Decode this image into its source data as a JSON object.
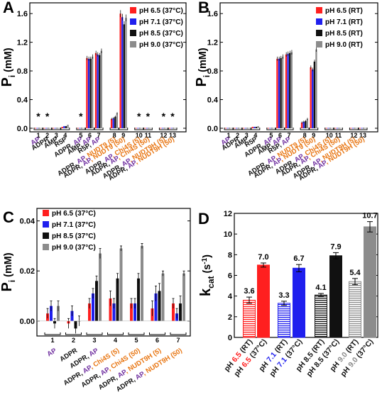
{
  "colors": {
    "red": "#ff1f1f",
    "blue": "#1f1fee",
    "black": "#111111",
    "gray": "#8c8c8c",
    "purple": "#7030a0",
    "orange": "#e87511"
  },
  "chart_data": [
    {
      "panel": "A",
      "type": "bar",
      "ylabel_main": "P",
      "ylabel_sub": "i",
      "ylabel_unit": " (mM)",
      "ylim": [
        -0.05,
        1.75
      ],
      "yticks": [
        "0.0",
        "0.4",
        "0.8",
        "1.2",
        "1.6"
      ],
      "categories": [
        "1",
        "2",
        "3",
        "4",
        "5",
        "6",
        "7",
        "8",
        "9",
        "10",
        "11",
        "12",
        "13"
      ],
      "asterisk_categories": [
        "1",
        "2",
        "5",
        "10",
        "11",
        "12",
        "13"
      ],
      "asterisk": "*",
      "series": [
        {
          "name": "pH 6.5 (37°C)",
          "color_key": "red",
          "values": [
            0.0,
            0.0,
            0.0,
            0.02,
            0.0,
            0.98,
            1.05,
            0.13,
            1.6,
            0.0,
            0.0,
            0.0,
            0.0
          ]
        },
        {
          "name": "pH 7.1 (37°C)",
          "color_key": "blue",
          "values": [
            0.0,
            0.0,
            0.0,
            0.03,
            0.0,
            0.97,
            1.03,
            0.14,
            1.55,
            0.0,
            0.0,
            0.0,
            0.0
          ]
        },
        {
          "name": "pH 8.5 (37°C)",
          "color_key": "black",
          "values": [
            0.0,
            0.0,
            0.0,
            0.03,
            0.0,
            0.97,
            1.02,
            0.16,
            1.45,
            0.0,
            0.0,
            0.0,
            0.0
          ]
        },
        {
          "name": "pH 9.0 (37°C)",
          "color_key": "gray",
          "values": [
            0.0,
            0.0,
            0.0,
            0.05,
            0.0,
            1.0,
            1.08,
            0.21,
            1.54,
            0.0,
            0.0,
            0.0,
            0.0
          ]
        }
      ],
      "xlabels": [
        [
          {
            "t": "AP",
            "c": "purple"
          }
        ],
        [
          {
            "t": "ADPR",
            "c": "black"
          }
        ],
        [
          {
            "t": "AMP",
            "c": "black"
          }
        ],
        [
          {
            "t": "R5P",
            "c": "black"
          }
        ],
        [
          {
            "t": "ADPR, ",
            "c": "black"
          },
          {
            "t": "AP",
            "c": "purple"
          }
        ],
        [
          {
            "t": "AMP, ",
            "c": "black"
          },
          {
            "t": "AP",
            "c": "purple"
          }
        ],
        [
          {
            "t": "R5P, ",
            "c": "black"
          },
          {
            "t": "AP",
            "c": "purple"
          }
        ],
        [
          {
            "t": "ADPR, ",
            "c": "black"
          },
          {
            "t": "AP",
            "c": "purple"
          },
          {
            "t": ", NUDT9 (5)",
            "c": "orange"
          }
        ],
        [
          {
            "t": "ADPR, ",
            "c": "black"
          },
          {
            "t": "AP",
            "c": "purple"
          },
          {
            "t": ", NUDT9 (50)",
            "c": "orange"
          }
        ],
        [
          {
            "t": "ADPR, ",
            "c": "black"
          },
          {
            "t": "AP",
            "c": "purple"
          },
          {
            "t": ", Chi4S (5)",
            "c": "orange"
          }
        ],
        [
          {
            "t": "ADPR, ",
            "c": "black"
          },
          {
            "t": "AP",
            "c": "purple"
          },
          {
            "t": ", Chi4S (50)",
            "c": "orange"
          }
        ],
        [
          {
            "t": "ADPR, ",
            "c": "black"
          },
          {
            "t": "AP",
            "c": "purple"
          },
          {
            "t": ", NUDT9H (5)",
            "c": "orange"
          }
        ],
        [
          {
            "t": "ADPR, ",
            "c": "black"
          },
          {
            "t": "AP",
            "c": "purple"
          },
          {
            "t": ", NUDT9H (50)",
            "c": "orange"
          }
        ]
      ]
    },
    {
      "panel": "B",
      "type": "bar",
      "ylabel_main": "P",
      "ylabel_sub": "i",
      "ylabel_unit": " (mM)",
      "ylim": [
        -0.05,
        1.75
      ],
      "yticks": [
        "0.0",
        "0.4",
        "0.8",
        "1.2",
        "1.6"
      ],
      "categories": [
        "1",
        "2",
        "3",
        "4",
        "5",
        "6",
        "7",
        "8",
        "9",
        "10",
        "11",
        "12",
        "13"
      ],
      "series": [
        {
          "name": "pH 6.5 (RT)",
          "color_key": "red",
          "values": [
            0.0,
            0.0,
            0.0,
            0.02,
            0.0,
            0.97,
            1.03,
            0.08,
            0.85,
            0.0,
            0.0,
            0.0,
            0.0
          ]
        },
        {
          "name": "pH 7.1 (RT)",
          "color_key": "blue",
          "values": [
            0.0,
            0.0,
            0.0,
            0.02,
            0.0,
            0.97,
            1.04,
            0.09,
            0.82,
            0.0,
            0.0,
            0.0,
            0.0
          ]
        },
        {
          "name": "pH 8.5 (RT)",
          "color_key": "black",
          "values": [
            0.0,
            0.0,
            0.0,
            0.02,
            0.0,
            0.98,
            1.05,
            0.1,
            0.93,
            0.0,
            0.0,
            0.0,
            0.0
          ]
        },
        {
          "name": "pH 9.0 (RT)",
          "color_key": "gray",
          "values": [
            0.0,
            0.0,
            0.0,
            0.03,
            0.0,
            1.0,
            1.06,
            0.13,
            1.1,
            0.0,
            0.0,
            0.0,
            0.0
          ]
        }
      ],
      "xlabels": [
        [
          {
            "t": "AP",
            "c": "purple"
          }
        ],
        [
          {
            "t": "ADPR",
            "c": "black"
          }
        ],
        [
          {
            "t": "AMP",
            "c": "black"
          }
        ],
        [
          {
            "t": "R5P",
            "c": "black"
          }
        ],
        [
          {
            "t": "ADPR, ",
            "c": "black"
          },
          {
            "t": "AP",
            "c": "purple"
          }
        ],
        [
          {
            "t": "AMP, ",
            "c": "black"
          },
          {
            "t": "AP",
            "c": "purple"
          }
        ],
        [
          {
            "t": "R5P, ",
            "c": "black"
          },
          {
            "t": "AP",
            "c": "purple"
          }
        ],
        [
          {
            "t": "ADPR, ",
            "c": "black"
          },
          {
            "t": "AP",
            "c": "purple"
          },
          {
            "t": ", NUDT9 (5)",
            "c": "orange"
          }
        ],
        [
          {
            "t": "ADPR, ",
            "c": "black"
          },
          {
            "t": "AP",
            "c": "purple"
          },
          {
            "t": ", NUDT9 (50)",
            "c": "orange"
          }
        ],
        [
          {
            "t": "ADPR, ",
            "c": "black"
          },
          {
            "t": "AP",
            "c": "purple"
          },
          {
            "t": ", Chi4S (5)",
            "c": "orange"
          }
        ],
        [
          {
            "t": "ADPR, ",
            "c": "black"
          },
          {
            "t": "AP",
            "c": "purple"
          },
          {
            "t": ", Chi4S (50)",
            "c": "orange"
          }
        ],
        [
          {
            "t": "ADPR, ",
            "c": "black"
          },
          {
            "t": "AP",
            "c": "purple"
          },
          {
            "t": ", NUDT9H (5)",
            "c": "orange"
          }
        ],
        [
          {
            "t": "ADPR, ",
            "c": "black"
          },
          {
            "t": "AP",
            "c": "purple"
          },
          {
            "t": ", NUDT9H (50)",
            "c": "orange"
          }
        ]
      ]
    },
    {
      "panel": "C",
      "type": "bar",
      "ylabel_main": "P",
      "ylabel_sub": "i",
      "ylabel_unit": " (mM)",
      "ylim": [
        -0.006,
        0.045
      ],
      "yticks": [
        "0.00",
        "0.02",
        "0.04"
      ],
      "categories": [
        "1",
        "2",
        "3",
        "4",
        "5",
        "6",
        "7"
      ],
      "series": [
        {
          "name": "pH 6.5 (37°C)",
          "color_key": "red",
          "values": [
            0.003,
            -0.001,
            0.007,
            0.009,
            0.007,
            0.005,
            0.007
          ],
          "errors": [
            0.002,
            0.002,
            0.002,
            0.003,
            0.002,
            0.003,
            0.002
          ]
        },
        {
          "name": "pH 7.1 (37°C)",
          "color_key": "blue",
          "values": [
            0.006,
            0.004,
            0.011,
            0.007,
            0.007,
            0.011,
            0.003
          ],
          "errors": [
            0.002,
            0.002,
            0.002,
            0.002,
            0.002,
            0.003,
            0.002
          ]
        },
        {
          "name": "pH 8.5 (37°C)",
          "color_key": "black",
          "values": [
            -0.001,
            -0.003,
            0.016,
            0.017,
            0.017,
            0.012,
            0.007
          ],
          "errors": [
            0.002,
            0.002,
            0.002,
            0.002,
            0.002,
            0.003,
            0.003
          ]
        },
        {
          "name": "pH 9.0 (37°C)",
          "color_key": "gray",
          "values": [
            0.006,
            0.0,
            0.027,
            0.029,
            0.03,
            0.019,
            0.019
          ],
          "errors": [
            0.002,
            0.002,
            0.002,
            0.001,
            0.001,
            0.001,
            0.001
          ]
        }
      ],
      "xlabels": [
        [
          {
            "t": "AP",
            "c": "purple"
          }
        ],
        [
          {
            "t": "ADPR",
            "c": "black"
          }
        ],
        [
          {
            "t": "ADPR, ",
            "c": "black"
          },
          {
            "t": "AP",
            "c": "purple"
          }
        ],
        [
          {
            "t": "ADPR, ",
            "c": "black"
          },
          {
            "t": "AP",
            "c": "purple"
          },
          {
            "t": ", Chi4S (5)",
            "c": "orange"
          }
        ],
        [
          {
            "t": "ADPR, ",
            "c": "black"
          },
          {
            "t": "AP",
            "c": "purple"
          },
          {
            "t": ", Chi4S (50)",
            "c": "orange"
          }
        ],
        [
          {
            "t": "ADPR, ",
            "c": "black"
          },
          {
            "t": "AP",
            "c": "purple"
          },
          {
            "t": ", NUDT9H (5)",
            "c": "orange"
          }
        ],
        [
          {
            "t": "ADPR, ",
            "c": "black"
          },
          {
            "t": "AP",
            "c": "purple"
          },
          {
            "t": ", NUDT9H (50)",
            "c": "orange"
          }
        ]
      ]
    },
    {
      "panel": "D",
      "type": "bar",
      "ylabel_main": "k",
      "ylabel_sub": "cat",
      "ylabel_unit": " (s",
      "ylabel_sup": "-1",
      "ylabel_close": ")",
      "ylim": [
        0,
        12
      ],
      "yticks": [
        "0",
        "2",
        "4",
        "6",
        "8",
        "10",
        "12"
      ],
      "bars": [
        {
          "value": 3.6,
          "label": "3.6",
          "error": 0.3,
          "color_key": "red",
          "hatched": true,
          "xlabel": [
            {
              "t": "pH ",
              "c": "black"
            },
            {
              "t": "6.5",
              "c": "red"
            },
            {
              "t": " (RT)",
              "c": "black"
            }
          ]
        },
        {
          "value": 7.0,
          "label": "7.0",
          "error": 0.2,
          "color_key": "red",
          "hatched": false,
          "xlabel": [
            {
              "t": "pH ",
              "c": "black"
            },
            {
              "t": "6.5",
              "c": "red"
            },
            {
              "t": " (37°C)",
              "c": "black"
            }
          ]
        },
        {
          "value": 3.3,
          "label": "3.3",
          "error": 0.2,
          "color_key": "blue",
          "hatched": true,
          "xlabel": [
            {
              "t": "pH ",
              "c": "black"
            },
            {
              "t": "7.1",
              "c": "blue"
            },
            {
              "t": " (RT)",
              "c": "black"
            }
          ]
        },
        {
          "value": 6.7,
          "label": "6.7",
          "error": 0.35,
          "color_key": "blue",
          "hatched": false,
          "xlabel": [
            {
              "t": "pH ",
              "c": "black"
            },
            {
              "t": "7.1",
              "c": "blue"
            },
            {
              "t": " (37°C)",
              "c": "black"
            }
          ]
        },
        {
          "value": 4.1,
          "label": "4.1",
          "error": 0.15,
          "color_key": "black",
          "hatched": true,
          "xlabel": [
            {
              "t": "pH 8.5 (RT)",
              "c": "black"
            }
          ]
        },
        {
          "value": 7.9,
          "label": "7.9",
          "error": 0.3,
          "color_key": "black",
          "hatched": false,
          "xlabel": [
            {
              "t": "pH 8.5 (37°C)",
              "c": "black"
            }
          ]
        },
        {
          "value": 5.4,
          "label": "5.4",
          "error": 0.3,
          "color_key": "gray",
          "hatched": true,
          "xlabel": [
            {
              "t": "pH ",
              "c": "black"
            },
            {
              "t": "9.0",
              "c": "gray"
            },
            {
              "t": " (RT)",
              "c": "black"
            }
          ]
        },
        {
          "value": 10.7,
          "label": "10.7",
          "error": 0.5,
          "color_key": "gray",
          "hatched": false,
          "xlabel": [
            {
              "t": "pH ",
              "c": "black"
            },
            {
              "t": "9.0",
              "c": "gray"
            },
            {
              "t": " (37°C)",
              "c": "black"
            }
          ]
        }
      ]
    }
  ]
}
